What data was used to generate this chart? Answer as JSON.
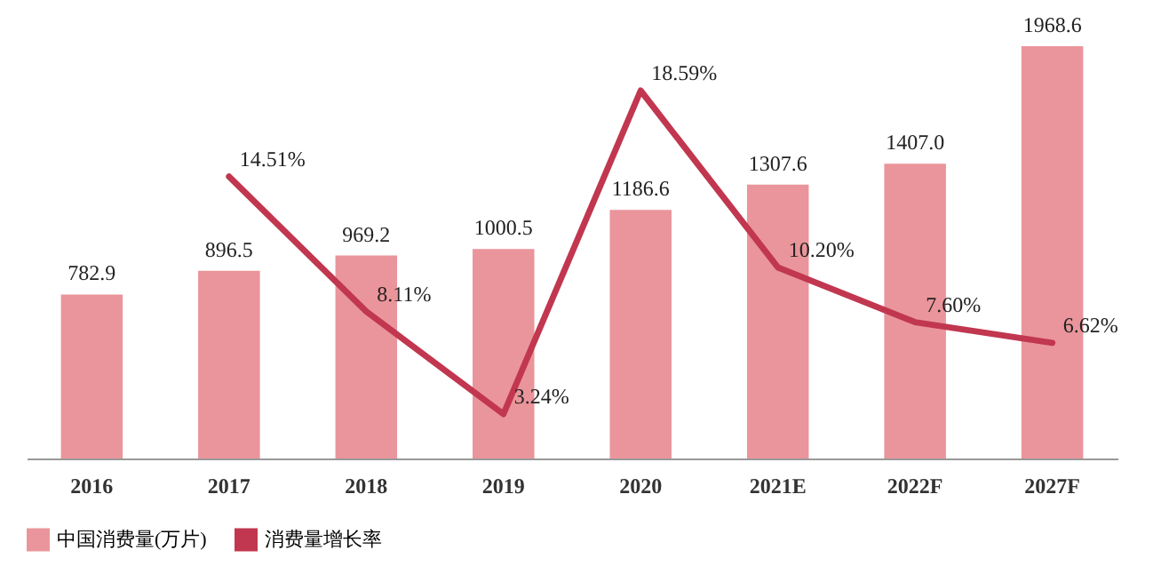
{
  "chart_data": {
    "type": "bar",
    "categories": [
      "2016",
      "2017",
      "2018",
      "2019",
      "2020",
      "2021E",
      "2022F",
      "2027F"
    ],
    "series": [
      {
        "name": "中国消费量(万片)",
        "color": "#ea959b",
        "values": [
          782.9,
          896.5,
          969.2,
          1000.5,
          1186.6,
          1307.6,
          1407.0,
          1968.6
        ],
        "value_labels": [
          "782.9",
          "896.5",
          "969.2",
          "1000.5",
          "1186.6",
          "1307.6",
          "1407.0",
          "1968.6"
        ]
      },
      {
        "name": "消费量增长率",
        "type": "line",
        "axis": "y2",
        "color": "#c1374f",
        "values": [
          null,
          14.51,
          8.11,
          3.24,
          18.59,
          10.2,
          7.6,
          6.62
        ],
        "value_labels": [
          null,
          "14.51%",
          "8.11%",
          "3.24%",
          "18.59%",
          "10.20%",
          "7.60%",
          "6.62%"
        ]
      }
    ],
    "legend": "bottom",
    "marker": "none"
  }
}
